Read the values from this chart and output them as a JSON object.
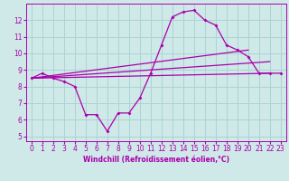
{
  "xlabel": "Windchill (Refroidissement éolien,°C)",
  "background_color": "#cfe8e8",
  "grid_color": "#aad4d4",
  "line_color": "#aa00aa",
  "xlim": [
    -0.5,
    23.5
  ],
  "ylim": [
    4.7,
    13.0
  ],
  "yticks": [
    5,
    6,
    7,
    8,
    9,
    10,
    11,
    12
  ],
  "xticks": [
    0,
    1,
    2,
    3,
    4,
    5,
    6,
    7,
    8,
    9,
    10,
    11,
    12,
    13,
    14,
    15,
    16,
    17,
    18,
    19,
    20,
    21,
    22,
    23
  ],
  "series1_x": [
    0,
    1,
    2,
    3,
    4,
    5,
    6,
    7,
    8,
    9,
    10,
    11,
    12,
    13,
    14,
    15,
    16,
    17,
    18,
    19,
    20,
    21,
    22,
    23
  ],
  "series1_y": [
    8.5,
    8.8,
    8.5,
    8.3,
    8.0,
    6.3,
    6.3,
    5.3,
    6.4,
    6.4,
    7.3,
    8.8,
    10.5,
    12.2,
    12.5,
    12.6,
    12.0,
    11.7,
    10.5,
    10.2,
    9.8,
    8.8,
    8.8,
    8.8
  ],
  "line2_x": [
    0,
    22
  ],
  "line2_y": [
    8.5,
    8.8
  ],
  "line3_x": [
    0,
    22
  ],
  "line3_y": [
    8.5,
    9.5
  ],
  "line4_x": [
    0,
    20
  ],
  "line4_y": [
    8.5,
    10.2
  ],
  "tick_fontsize": 5.5,
  "label_fontsize": 5.5
}
